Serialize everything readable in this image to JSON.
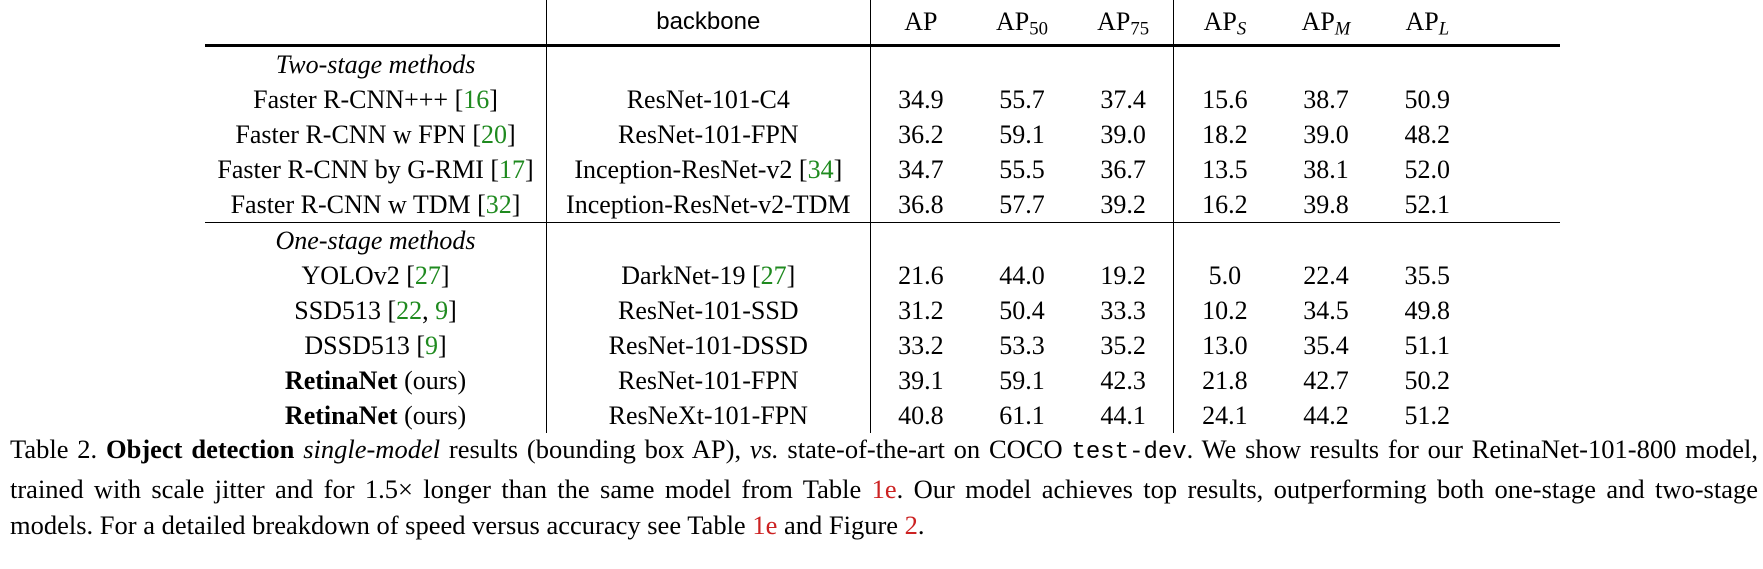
{
  "header": {
    "backbone": "backbone",
    "ap": "AP",
    "ap50": {
      "base": "AP",
      "sub": "50"
    },
    "ap75": {
      "base": "AP",
      "sub": "75"
    },
    "aps": {
      "base": "AP",
      "sub": "S"
    },
    "apm": {
      "base": "AP",
      "sub": "M"
    },
    "apl": {
      "base": "AP",
      "sub": "L"
    }
  },
  "sections": {
    "two_stage": "Two-stage methods",
    "one_stage": "One-stage methods"
  },
  "rows": [
    {
      "method": "Faster R-CNN+++ ",
      "cite": "16",
      "backbone": "ResNet-101-C4",
      "backbone_cite": "",
      "ap": "34.9",
      "ap50": "55.7",
      "ap75": "37.4",
      "aps": "15.6",
      "apm": "38.7",
      "apl": "50.9"
    },
    {
      "method": "Faster R-CNN w FPN ",
      "cite": "20",
      "backbone": "ResNet-101-FPN",
      "backbone_cite": "",
      "ap": "36.2",
      "ap50": "59.1",
      "ap75": "39.0",
      "aps": "18.2",
      "apm": "39.0",
      "apl": "48.2"
    },
    {
      "method": "Faster R-CNN by G-RMI ",
      "cite": "17",
      "backbone": "Inception-ResNet-v2 ",
      "backbone_cite": "34",
      "ap": "34.7",
      "ap50": "55.5",
      "ap75": "36.7",
      "aps": "13.5",
      "apm": "38.1",
      "apl": "52.0"
    },
    {
      "method": "Faster R-CNN w TDM ",
      "cite": "32",
      "backbone": "Inception-ResNet-v2-TDM",
      "backbone_cite": "",
      "ap": "36.8",
      "ap50": "57.7",
      "ap75": "39.2",
      "aps": "16.2",
      "apm": "39.8",
      "apl": "52.1"
    },
    {
      "method": "YOLOv2 ",
      "cite": "27",
      "backbone": "DarkNet-19 ",
      "backbone_cite": "27",
      "ap": "21.6",
      "ap50": "44.0",
      "ap75": "19.2",
      "aps": "5.0",
      "apm": "22.4",
      "apl": "35.5"
    },
    {
      "method": "SSD513 ",
      "cite_a": "22",
      "cite_sep": ", ",
      "cite_b": "9",
      "backbone": "ResNet-101-SSD",
      "backbone_cite": "",
      "ap": "31.2",
      "ap50": "50.4",
      "ap75": "33.3",
      "aps": "10.2",
      "apm": "34.5",
      "apl": "49.8"
    },
    {
      "method": "DSSD513 ",
      "cite": "9",
      "backbone": "ResNet-101-DSSD",
      "backbone_cite": "",
      "ap": "33.2",
      "ap50": "53.3",
      "ap75": "35.2",
      "aps": "13.0",
      "apm": "35.4",
      "apl": "51.1"
    },
    {
      "method_bold": "RetinaNet",
      "method_rest": " (ours)",
      "backbone": "ResNet-101-FPN",
      "backbone_cite": "",
      "ap": "39.1",
      "ap50": "59.1",
      "ap75": "42.3",
      "aps": "21.8",
      "apm": "42.7",
      "apl": "50.2"
    },
    {
      "method_bold": "RetinaNet",
      "method_rest": " (ours)",
      "backbone": "ResNeXt-101-FPN",
      "backbone_cite": "",
      "ap": "40.8",
      "ap50": "61.1",
      "ap75": "44.1",
      "aps": "24.1",
      "apm": "44.2",
      "apl": "51.2"
    }
  ],
  "caption": {
    "label": "Table 2. ",
    "bold": "Object detection",
    "s1": " ",
    "italic1": "single-model",
    "s2": " results (bounding box AP), ",
    "italic2": "vs.",
    "s3": " state-of-the-art on COCO ",
    "mono": "test-dev",
    "s4": ". We show results for our RetinaNet-101-800 model, trained with scale jitter and for 1.5× longer than the same model from Table ",
    "ref1": "1e",
    "s5": ". Our model achieves top results, outperforming both one-stage and two-stage models. For a detailed breakdown of speed versus accuracy see Table ",
    "ref2": "1e",
    "s6": " and Figure ",
    "ref3": "2",
    "s7": "."
  }
}
